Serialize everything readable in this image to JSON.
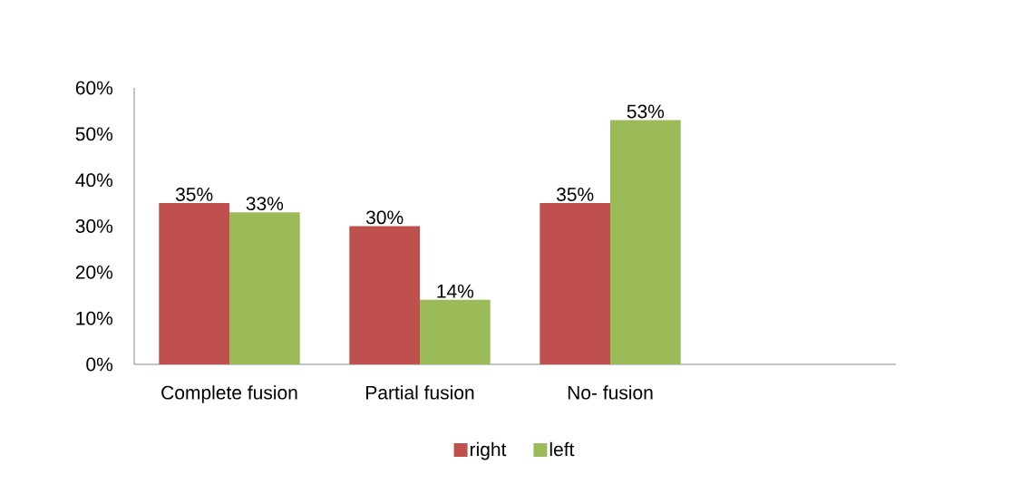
{
  "chart_data": {
    "type": "bar",
    "categories": [
      "Complete fusion",
      "Partial fusion",
      "No- fusion",
      null
    ],
    "series": [
      {
        "name": "right",
        "color": "#c0504d",
        "values": [
          35,
          30,
          35,
          null
        ],
        "value_labels": [
          "35%",
          "30%",
          "35%",
          null
        ]
      },
      {
        "name": "left",
        "color": "#9bbb59",
        "values": [
          33,
          14,
          53,
          null
        ],
        "value_labels": [
          "33%",
          "14%",
          "53%",
          null
        ]
      }
    ],
    "ylim": [
      0,
      60
    ],
    "yticks": [
      {
        "value": 0,
        "label": "0%"
      },
      {
        "value": 10,
        "label": "10%"
      },
      {
        "value": 20,
        "label": "20%"
      },
      {
        "value": 30,
        "label": "30%"
      },
      {
        "value": 40,
        "label": "40%"
      },
      {
        "value": 50,
        "label": "50%"
      },
      {
        "value": 60,
        "label": "60%"
      }
    ],
    "legend": "bottom"
  }
}
